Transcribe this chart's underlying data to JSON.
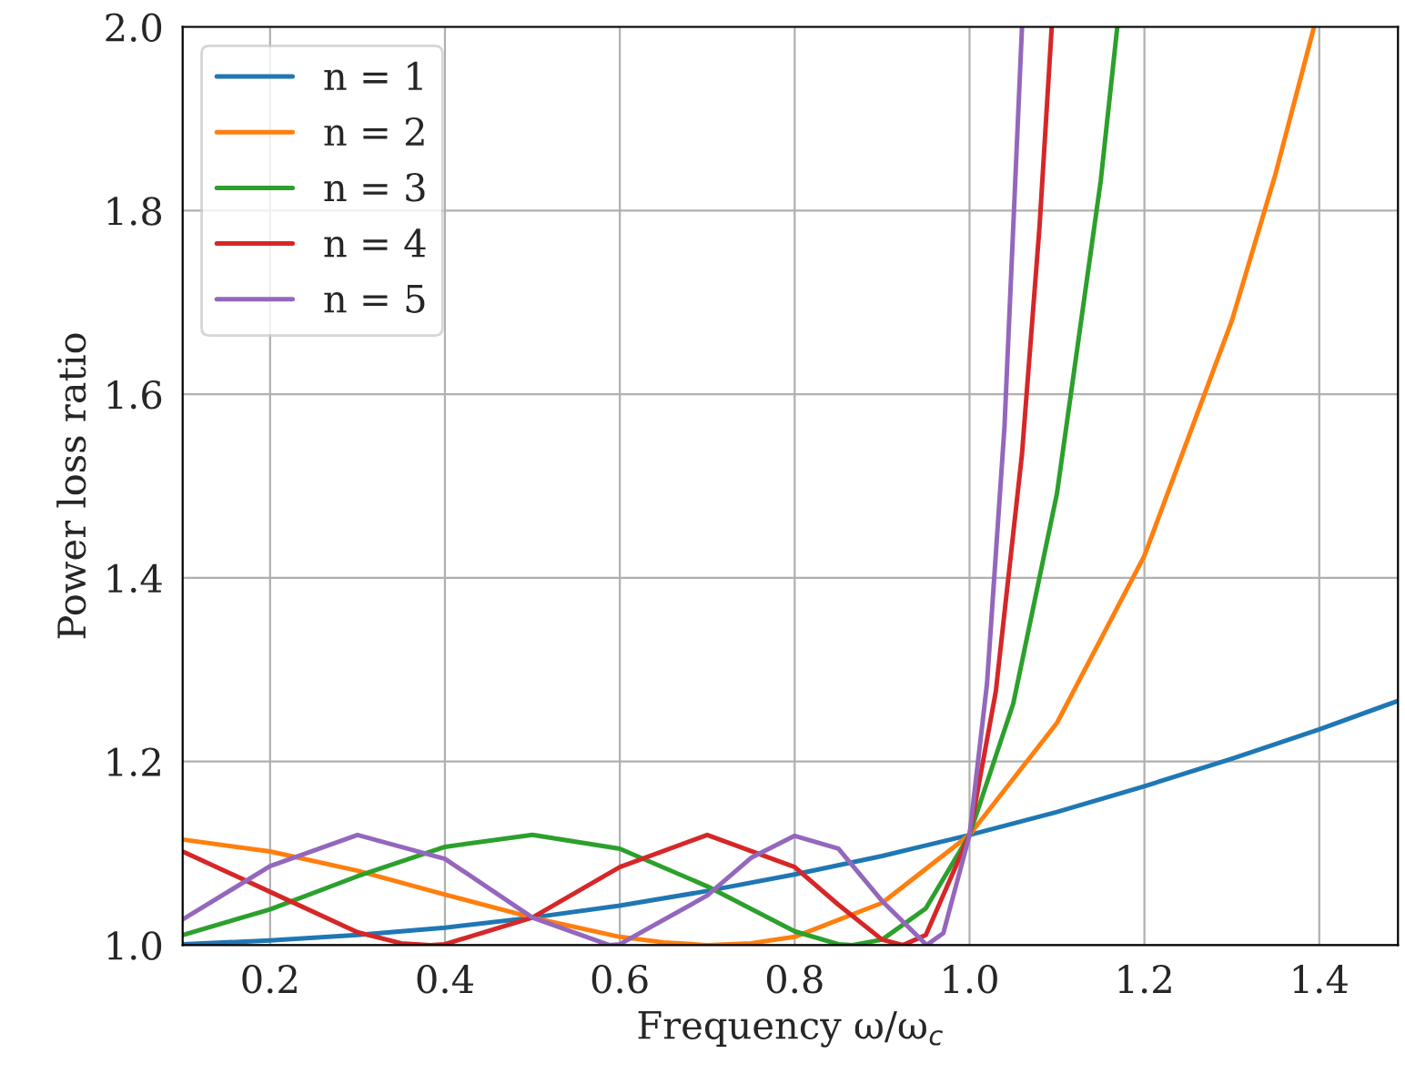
{
  "chart_data": {
    "type": "line",
    "xlabel": "Frequency ω/ω$_{c}$",
    "ylabel": "Power loss ratio",
    "xlim": [
      0.1,
      1.49
    ],
    "ylim": [
      1.0,
      2.0
    ],
    "xticks": [
      0.2,
      0.4,
      0.6,
      0.8,
      {
        "value": 1.0,
        "label": "1.0"
      },
      1.2,
      1.4
    ],
    "yticks": [
      {
        "value": 1.0,
        "label": "1.0"
      },
      1.2,
      1.4,
      1.6,
      1.8,
      {
        "value": 2.0,
        "label": "2.0"
      }
    ],
    "grid": true,
    "legend": "top left",
    "line_style": "solid",
    "series": [
      {
        "name": "n = 1",
        "color": "#1f77b4",
        "x": [
          0.1,
          0.2,
          0.3,
          0.4,
          0.5,
          0.6,
          0.7,
          0.8,
          0.9,
          1.0,
          1.1,
          1.2,
          1.3,
          1.4,
          1.49
        ],
        "values": [
          1.001,
          1.005,
          1.011,
          1.019,
          1.03,
          1.043,
          1.059,
          1.077,
          1.097,
          1.12,
          1.145,
          1.173,
          1.203,
          1.235,
          1.266
        ]
      },
      {
        "name": "n = 2",
        "color": "#ff7f0e",
        "x": [
          0.1,
          0.2,
          0.3,
          0.4,
          0.5,
          0.6,
          0.65,
          0.7,
          0.75,
          0.8,
          0.9,
          1.0,
          1.1,
          1.2,
          1.3,
          1.35,
          1.394
        ],
        "values": [
          1.115,
          1.102,
          1.081,
          1.055,
          1.03,
          1.009,
          1.003,
          1.0,
          1.002,
          1.009,
          1.046,
          1.12,
          1.242,
          1.424,
          1.68,
          1.84,
          2.0
        ]
      },
      {
        "name": "n = 3",
        "color": "#2ca02c",
        "x": [
          0.1,
          0.2,
          0.3,
          0.4,
          0.5,
          0.6,
          0.7,
          0.8,
          0.85,
          0.866,
          0.9,
          0.95,
          1.0,
          1.05,
          1.1,
          1.15,
          1.169
        ],
        "values": [
          1.011,
          1.039,
          1.075,
          1.107,
          1.12,
          1.105,
          1.064,
          1.015,
          1.001,
          1.0,
          1.006,
          1.04,
          1.12,
          1.263,
          1.492,
          1.832,
          2.0
        ]
      },
      {
        "name": "n = 4",
        "color": "#d62728",
        "x": [
          0.1,
          0.2,
          0.3,
          0.35,
          0.383,
          0.4,
          0.5,
          0.6,
          0.7,
          0.8,
          0.85,
          0.9,
          0.924,
          0.95,
          1.0,
          1.03,
          1.06,
          1.08,
          1.094
        ],
        "values": [
          1.102,
          1.058,
          1.014,
          1.002,
          1.0,
          1.001,
          1.03,
          1.085,
          1.12,
          1.085,
          1.044,
          1.006,
          1.0,
          1.011,
          1.12,
          1.276,
          1.535,
          1.782,
          2.0
        ]
      },
      {
        "name": "n = 5",
        "color": "#9467bd",
        "x": [
          0.1,
          0.2,
          0.3,
          0.4,
          0.5,
          0.588,
          0.6,
          0.7,
          0.75,
          0.8,
          0.85,
          0.9,
          0.951,
          0.97,
          1.0,
          1.02,
          1.04,
          1.06
        ],
        "values": [
          1.028,
          1.086,
          1.12,
          1.094,
          1.03,
          1.0,
          1.001,
          1.054,
          1.095,
          1.119,
          1.105,
          1.048,
          1.0,
          1.013,
          1.12,
          1.285,
          1.565,
          2.0
        ]
      }
    ]
  }
}
